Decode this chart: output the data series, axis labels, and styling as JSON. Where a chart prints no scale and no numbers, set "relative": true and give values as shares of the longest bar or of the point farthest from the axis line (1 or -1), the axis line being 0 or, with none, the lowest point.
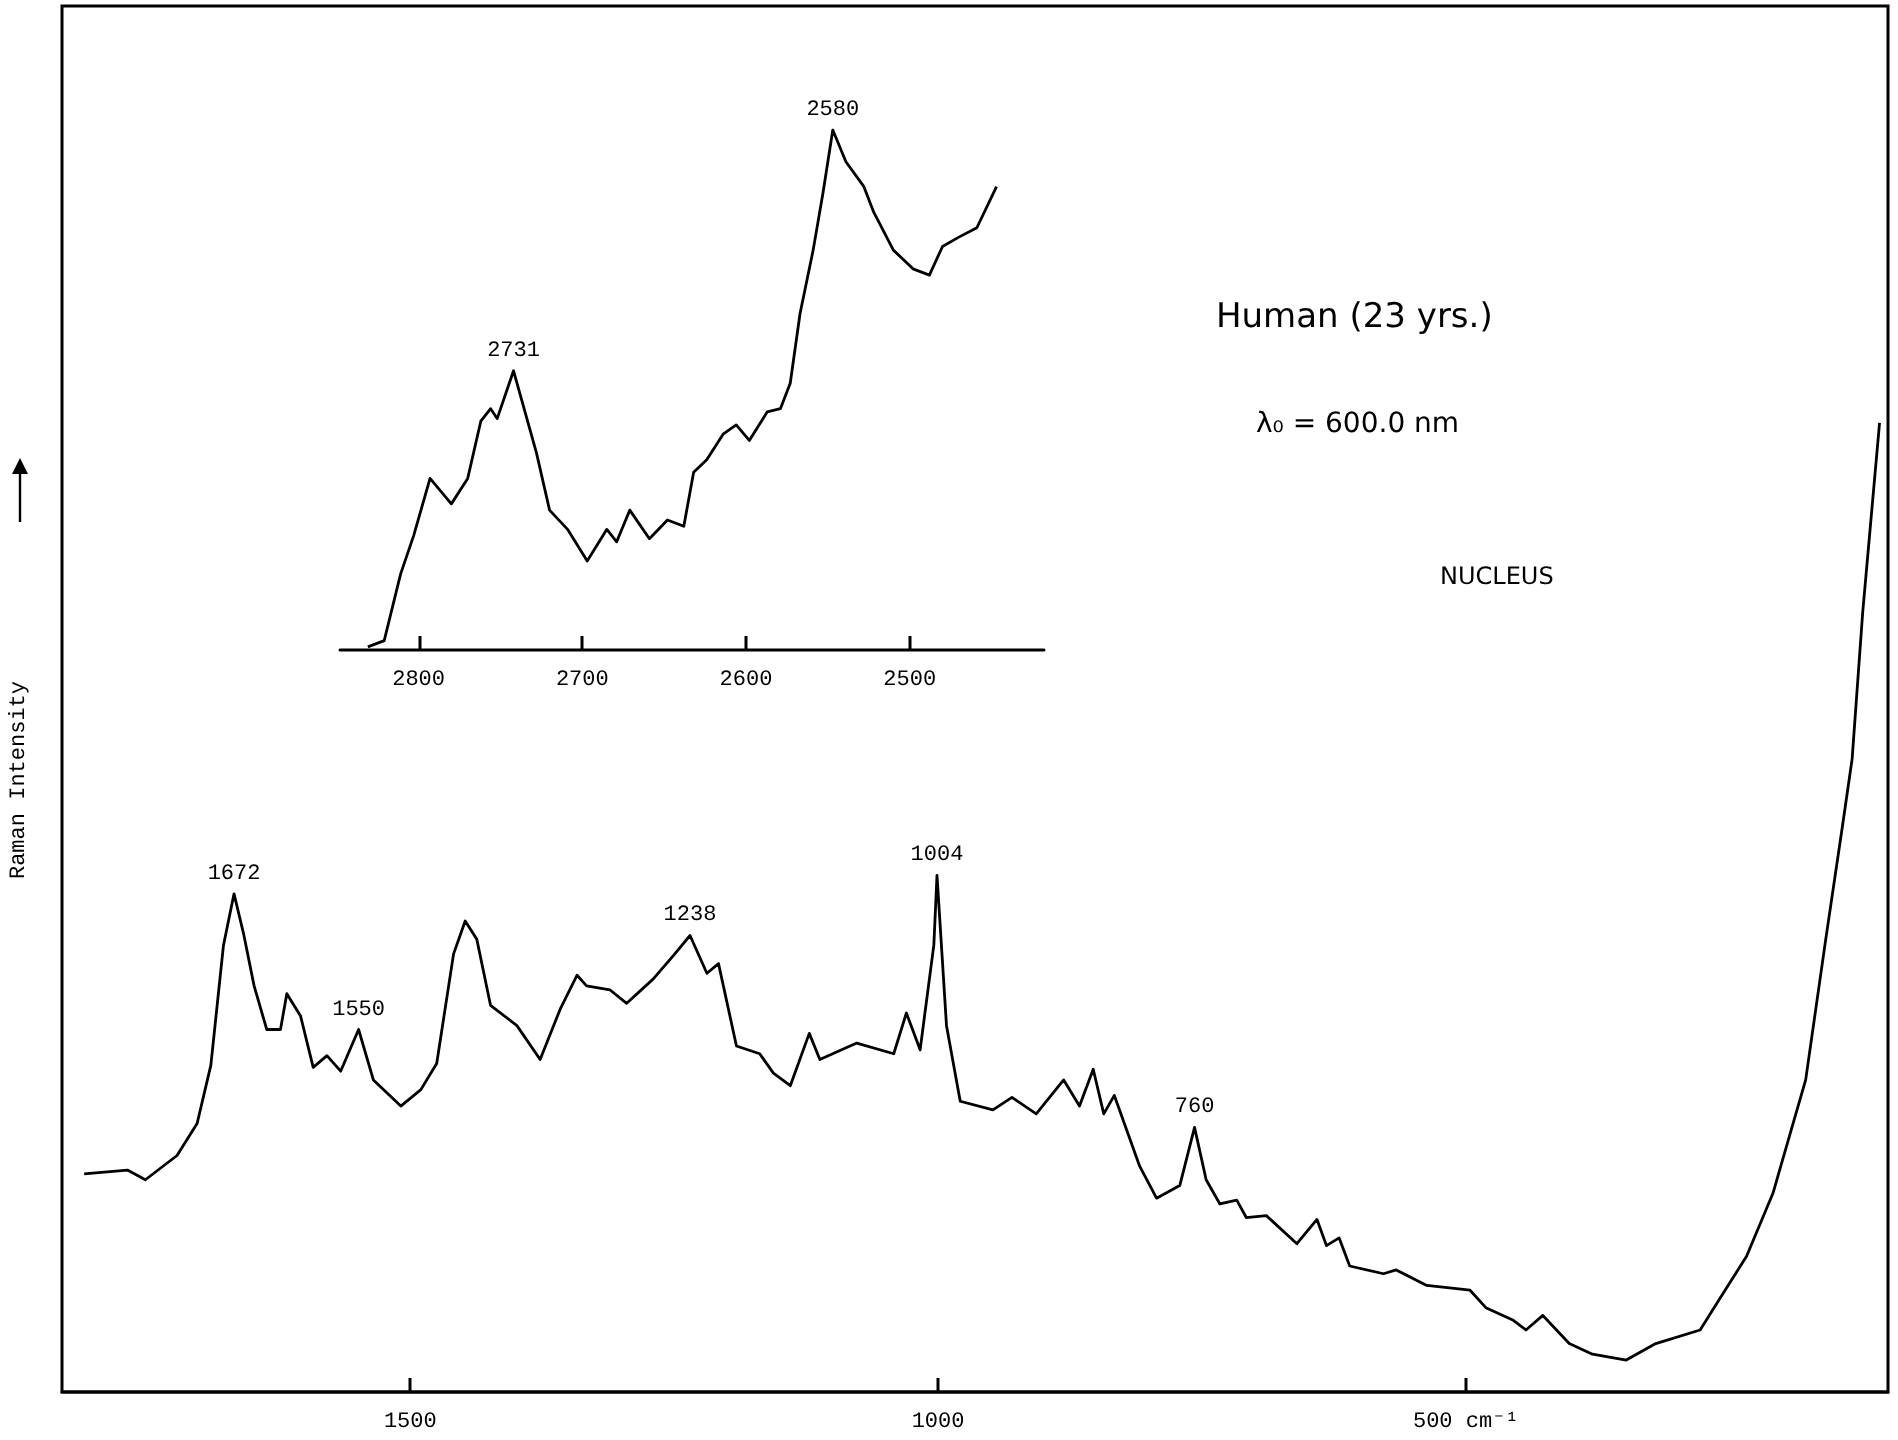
{
  "chart_data": [
    {
      "type": "line",
      "ylabel": "Raman Intensity",
      "relative": true,
      "marker": "none",
      "color": "#000000",
      "xlim": [
        1830,
        100
      ],
      "xticks": [
        1500,
        1000,
        {
          "value": 500,
          "label": "500 cm⁻¹"
        }
      ],
      "x": [
        1809,
        1768,
        1751,
        1721,
        1702,
        1689,
        1677,
        1667,
        1658,
        1648,
        1636,
        1623,
        1617,
        1604,
        1592,
        1579,
        1566,
        1549,
        1535,
        1509,
        1490,
        1475,
        1459,
        1448,
        1437,
        1424,
        1399,
        1377,
        1358,
        1342,
        1333,
        1311,
        1295,
        1270,
        1251,
        1235,
        1219,
        1208,
        1191,
        1169,
        1156,
        1140,
        1122,
        1112,
        1077,
        1042,
        1030,
        1017,
        1004,
        1001,
        992,
        979,
        948,
        930,
        907,
        881,
        866,
        853,
        843,
        833,
        809,
        793,
        771,
        757,
        746,
        733,
        717,
        708,
        689,
        660,
        641,
        632,
        620,
        610,
        578,
        566,
        537,
        496,
        481,
        455,
        443,
        427,
        402,
        380,
        348,
        320,
        278,
        259,
        234,
        209,
        178,
        159,
        143,
        134,
        124,
        108
      ],
      "values": [
        0.225,
        0.229,
        0.219,
        0.244,
        0.277,
        0.337,
        0.461,
        0.514,
        0.473,
        0.419,
        0.374,
        0.374,
        0.411,
        0.388,
        0.335,
        0.347,
        0.331,
        0.374,
        0.322,
        0.295,
        0.312,
        0.339,
        0.452,
        0.486,
        0.467,
        0.399,
        0.378,
        0.343,
        0.395,
        0.43,
        0.419,
        0.415,
        0.401,
        0.426,
        0.45,
        0.471,
        0.432,
        0.442,
        0.357,
        0.349,
        0.329,
        0.316,
        0.37,
        0.343,
        0.36,
        0.349,
        0.391,
        0.353,
        0.461,
        0.533,
        0.378,
        0.3,
        0.291,
        0.304,
        0.287,
        0.322,
        0.295,
        0.333,
        0.287,
        0.306,
        0.233,
        0.2,
        0.213,
        0.273,
        0.219,
        0.194,
        0.198,
        0.18,
        0.182,
        0.153,
        0.178,
        0.151,
        0.159,
        0.13,
        0.122,
        0.126,
        0.11,
        0.105,
        0.087,
        0.074,
        0.064,
        0.079,
        0.05,
        0.039,
        0.033,
        0.05,
        0.064,
        0.097,
        0.14,
        0.205,
        0.322,
        0.467,
        0.585,
        0.653,
        0.804,
        1.0
      ],
      "annotations": [
        {
          "text": "1672",
          "x": 1667,
          "y": 0.514
        },
        {
          "text": "1550",
          "x": 1549,
          "y": 0.374
        },
        {
          "text": "1238",
          "x": 1235,
          "y": 0.471
        },
        {
          "text": "1004",
          "x": 1001,
          "y": 0.533
        },
        {
          "text": "760",
          "x": 757,
          "y": 0.273
        },
        "Human (23 yrs.)",
        "λ₀ = 600.0 nm",
        "NUCLEUS"
      ]
    },
    {
      "type": "line",
      "relative": true,
      "marker": "none",
      "color": "#000000",
      "xlim": [
        2848,
        2418
      ],
      "xticks": [
        2800,
        2700,
        2600,
        2500
      ],
      "x": [
        2831,
        2821,
        2811,
        2803,
        2793,
        2780,
        2770,
        2762,
        2756,
        2752,
        2742,
        2728,
        2720,
        2709,
        2697,
        2685,
        2679,
        2671,
        2659,
        2648,
        2638,
        2632,
        2624,
        2614,
        2606,
        2598,
        2587,
        2579,
        2573,
        2567,
        2559,
        2553,
        2547,
        2539,
        2528,
        2522,
        2510,
        2498,
        2488,
        2480,
        2470,
        2459,
        2447
      ],
      "values": [
        0.006,
        0.018,
        0.146,
        0.22,
        0.33,
        0.281,
        0.33,
        0.44,
        0.464,
        0.445,
        0.537,
        0.379,
        0.269,
        0.232,
        0.171,
        0.232,
        0.208,
        0.269,
        0.214,
        0.25,
        0.238,
        0.342,
        0.366,
        0.415,
        0.433,
        0.403,
        0.458,
        0.464,
        0.513,
        0.647,
        0.769,
        0.879,
        1.0,
        0.939,
        0.891,
        0.842,
        0.769,
        0.733,
        0.721,
        0.776,
        0.794,
        0.812,
        0.891
      ],
      "annotations": [
        {
          "text": "2731",
          "x": 2742,
          "y": 0.537
        },
        {
          "text": "2580",
          "x": 2547,
          "y": 1.0
        }
      ]
    }
  ]
}
